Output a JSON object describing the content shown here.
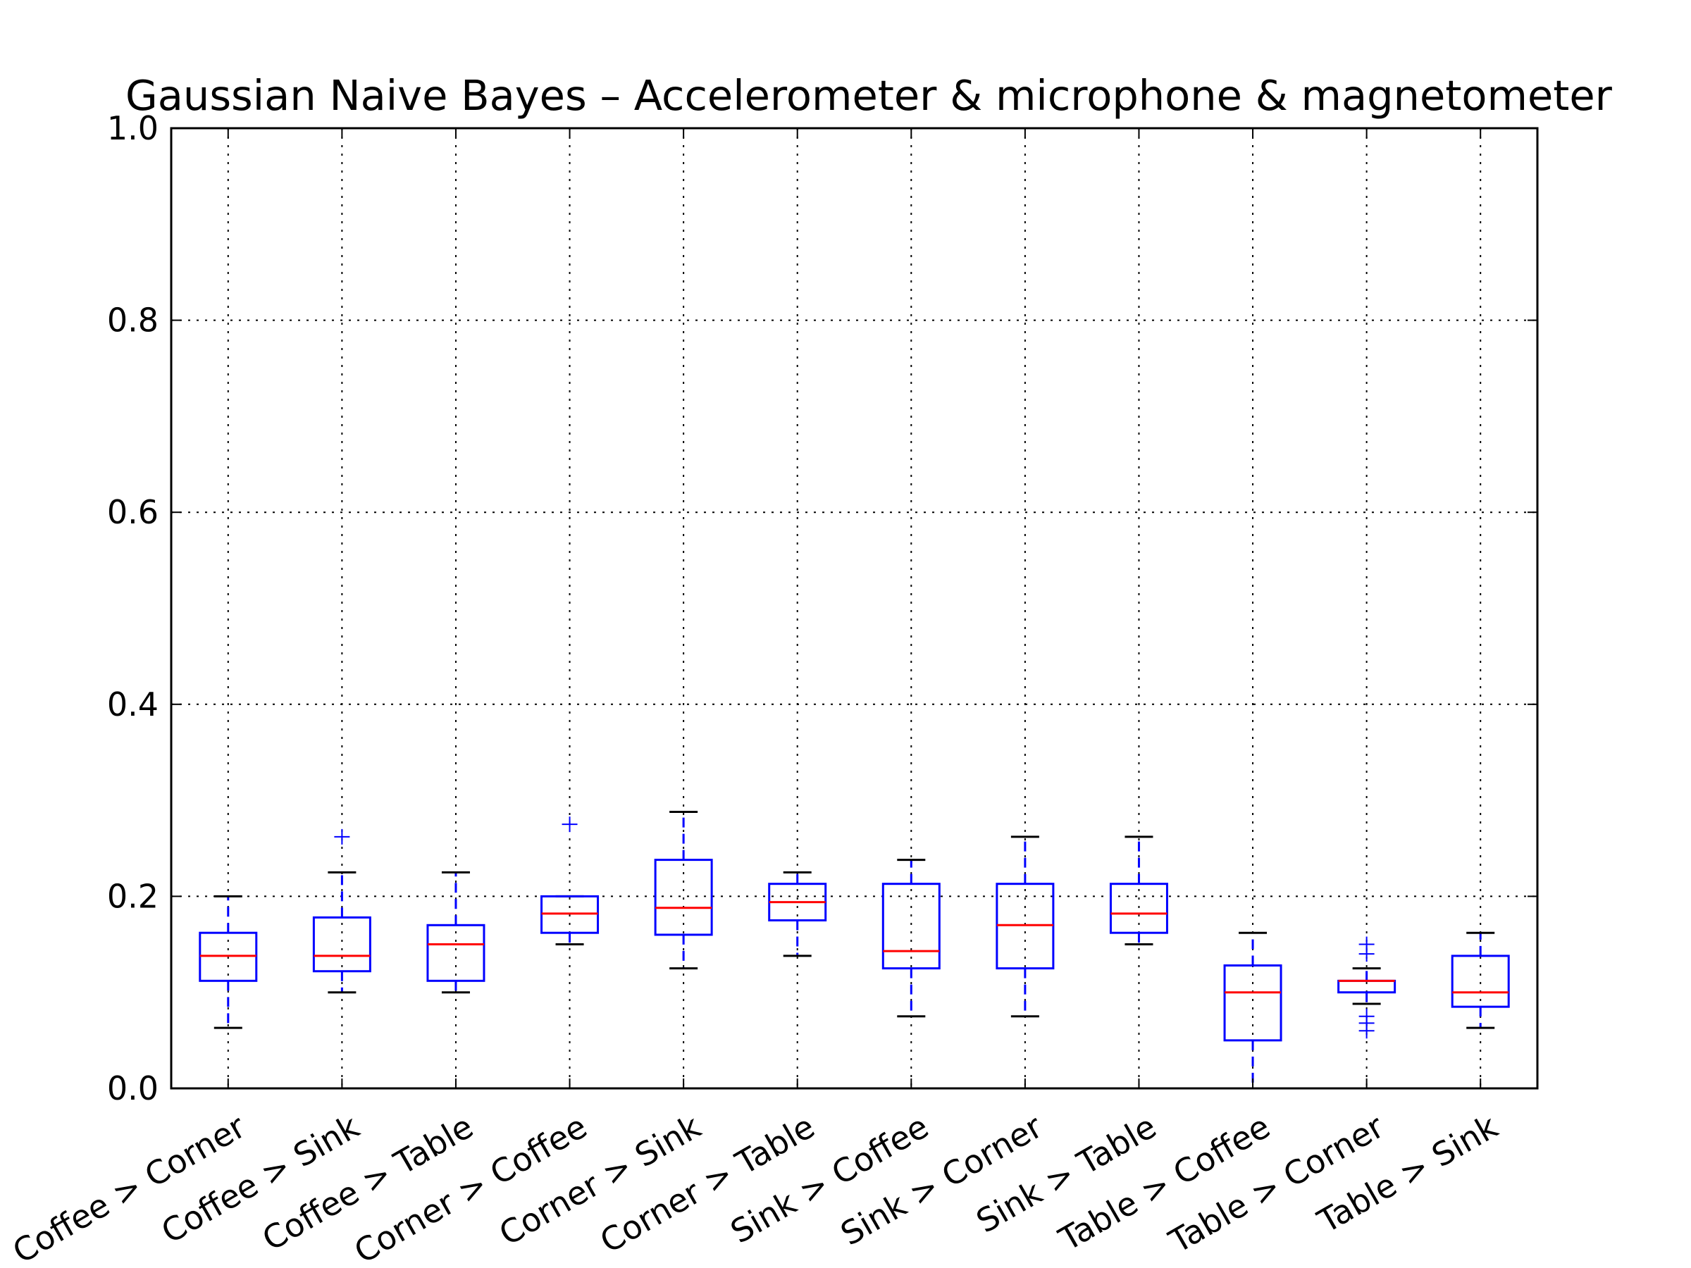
{
  "chart_data": {
    "type": "box",
    "title": "Gaussian Naive Bayes – Accelerometer & microphone & magnetometer",
    "xlabel": "",
    "ylabel": "",
    "ylim": [
      0.0,
      1.0
    ],
    "yticks": [
      "0.0",
      "0.2",
      "0.4",
      "0.6",
      "0.8",
      "1.0"
    ],
    "grid": true,
    "colors": {
      "box": "#0000ff",
      "median": "#ff0000",
      "cap": "#000000",
      "outlier": "#0000ff",
      "grid": "#000000"
    },
    "categories": [
      "Coffee > Corner",
      "Coffee > Sink",
      "Coffee > Table",
      "Corner > Coffee",
      "Corner > Sink",
      "Corner > Table",
      "Sink > Coffee",
      "Sink > Corner",
      "Sink > Table",
      "Table > Coffee",
      "Table > Corner",
      "Table > Sink"
    ],
    "boxes": [
      {
        "whislo": 0.063,
        "q1": 0.112,
        "med": 0.138,
        "q3": 0.162,
        "whishi": 0.2,
        "fliers": []
      },
      {
        "whislo": 0.1,
        "q1": 0.122,
        "med": 0.138,
        "q3": 0.178,
        "whishi": 0.225,
        "fliers": [
          0.262
        ]
      },
      {
        "whislo": 0.1,
        "q1": 0.112,
        "med": 0.15,
        "q3": 0.17,
        "whishi": 0.225,
        "fliers": []
      },
      {
        "whislo": 0.15,
        "q1": 0.162,
        "med": 0.182,
        "q3": 0.2,
        "whishi": 0.2,
        "fliers": [
          0.275
        ]
      },
      {
        "whislo": 0.125,
        "q1": 0.16,
        "med": 0.188,
        "q3": 0.238,
        "whishi": 0.288,
        "fliers": []
      },
      {
        "whislo": 0.138,
        "q1": 0.175,
        "med": 0.194,
        "q3": 0.213,
        "whishi": 0.225,
        "fliers": []
      },
      {
        "whislo": 0.075,
        "q1": 0.125,
        "med": 0.143,
        "q3": 0.213,
        "whishi": 0.238,
        "fliers": []
      },
      {
        "whislo": 0.075,
        "q1": 0.125,
        "med": 0.17,
        "q3": 0.213,
        "whishi": 0.262,
        "fliers": []
      },
      {
        "whislo": 0.15,
        "q1": 0.162,
        "med": 0.182,
        "q3": 0.213,
        "whishi": 0.262,
        "fliers": []
      },
      {
        "whislo": 0.0,
        "q1": 0.05,
        "med": 0.1,
        "q3": 0.128,
        "whishi": 0.162,
        "fliers": []
      },
      {
        "whislo": 0.088,
        "q1": 0.1,
        "med": 0.112,
        "q3": 0.112,
        "whishi": 0.125,
        "fliers": [
          0.15,
          0.14,
          0.075,
          0.068,
          0.06
        ]
      },
      {
        "whislo": 0.063,
        "q1": 0.085,
        "med": 0.1,
        "q3": 0.138,
        "whishi": 0.162,
        "fliers": []
      }
    ]
  }
}
